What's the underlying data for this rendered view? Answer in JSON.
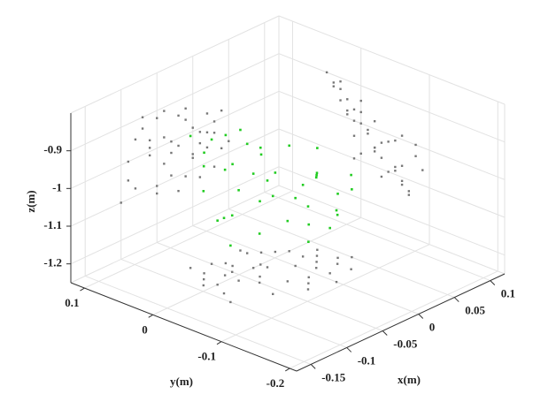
{
  "chart_data": {
    "type": "scatter3d",
    "x_label": "x(m)",
    "y_label": "y(m)",
    "z_label": "z(m)",
    "xlim": [
      -0.17,
      0.12
    ],
    "ylim": [
      -0.21,
      0.12
    ],
    "zlim": [
      -1.25,
      -0.8
    ],
    "xticks": [
      -0.15,
      -0.1,
      -0.05,
      0,
      0.05,
      0.1
    ],
    "yticks": [
      -0.2,
      -0.1,
      0,
      0.1
    ],
    "zticks": [
      -1.2,
      -1.1,
      -1,
      -0.9
    ],
    "grid": true,
    "projection_color": "#777777",
    "series": [
      {
        "color": "#22cc22",
        "x": [
          -0.08,
          -0.07,
          -0.06,
          -0.05,
          -0.04,
          -0.03,
          -0.02,
          -0.01,
          0,
          0.01,
          0.02,
          0.03,
          0.04,
          -0.09,
          -0.1,
          0.05,
          -0.05,
          -0.03,
          -0.01,
          0.01,
          0.03,
          -0.07,
          -0.06,
          -0.04,
          -0.02,
          0,
          0.02,
          0.04,
          -0.08,
          -0.05,
          -0.02,
          0.01,
          -0.06,
          -0.03,
          0,
          0.03,
          -0.04,
          -0.01,
          0.02,
          -0.09
        ],
        "y": [
          0.02,
          0.03,
          0.01,
          0.04,
          0.02,
          0.0,
          -0.01,
          0.03,
          0.02,
          0.01,
          -0.02,
          -0.03,
          -0.05,
          -0.02,
          -0.04,
          -0.06,
          -0.03,
          -0.05,
          -0.06,
          -0.07,
          -0.08,
          0.05,
          -0.01,
          -0.02,
          0.0,
          -0.03,
          -0.04,
          -0.02,
          0.0,
          0.01,
          -0.07,
          -0.05,
          -0.06,
          -0.08,
          -0.09,
          -0.06,
          0.03,
          0.04,
          0.0,
          0.01
        ],
        "z": [
          -0.95,
          -0.93,
          -0.97,
          -0.92,
          -0.98,
          -1.0,
          -1.02,
          -0.96,
          -0.99,
          -1.04,
          -1.06,
          -1.03,
          -1.08,
          -1.05,
          -1.1,
          -1.07,
          -1.12,
          -1.09,
          -1.11,
          -1.13,
          -1.0,
          -0.9,
          -1.01,
          -1.05,
          -0.94,
          -1.07,
          -1.02,
          -0.98,
          -1.08,
          -1.1,
          -1.14,
          -1.01,
          -0.99,
          -1.03,
          -1.06,
          -1.12,
          -0.91,
          -0.93,
          -0.97,
          -1.0
        ]
      }
    ]
  }
}
